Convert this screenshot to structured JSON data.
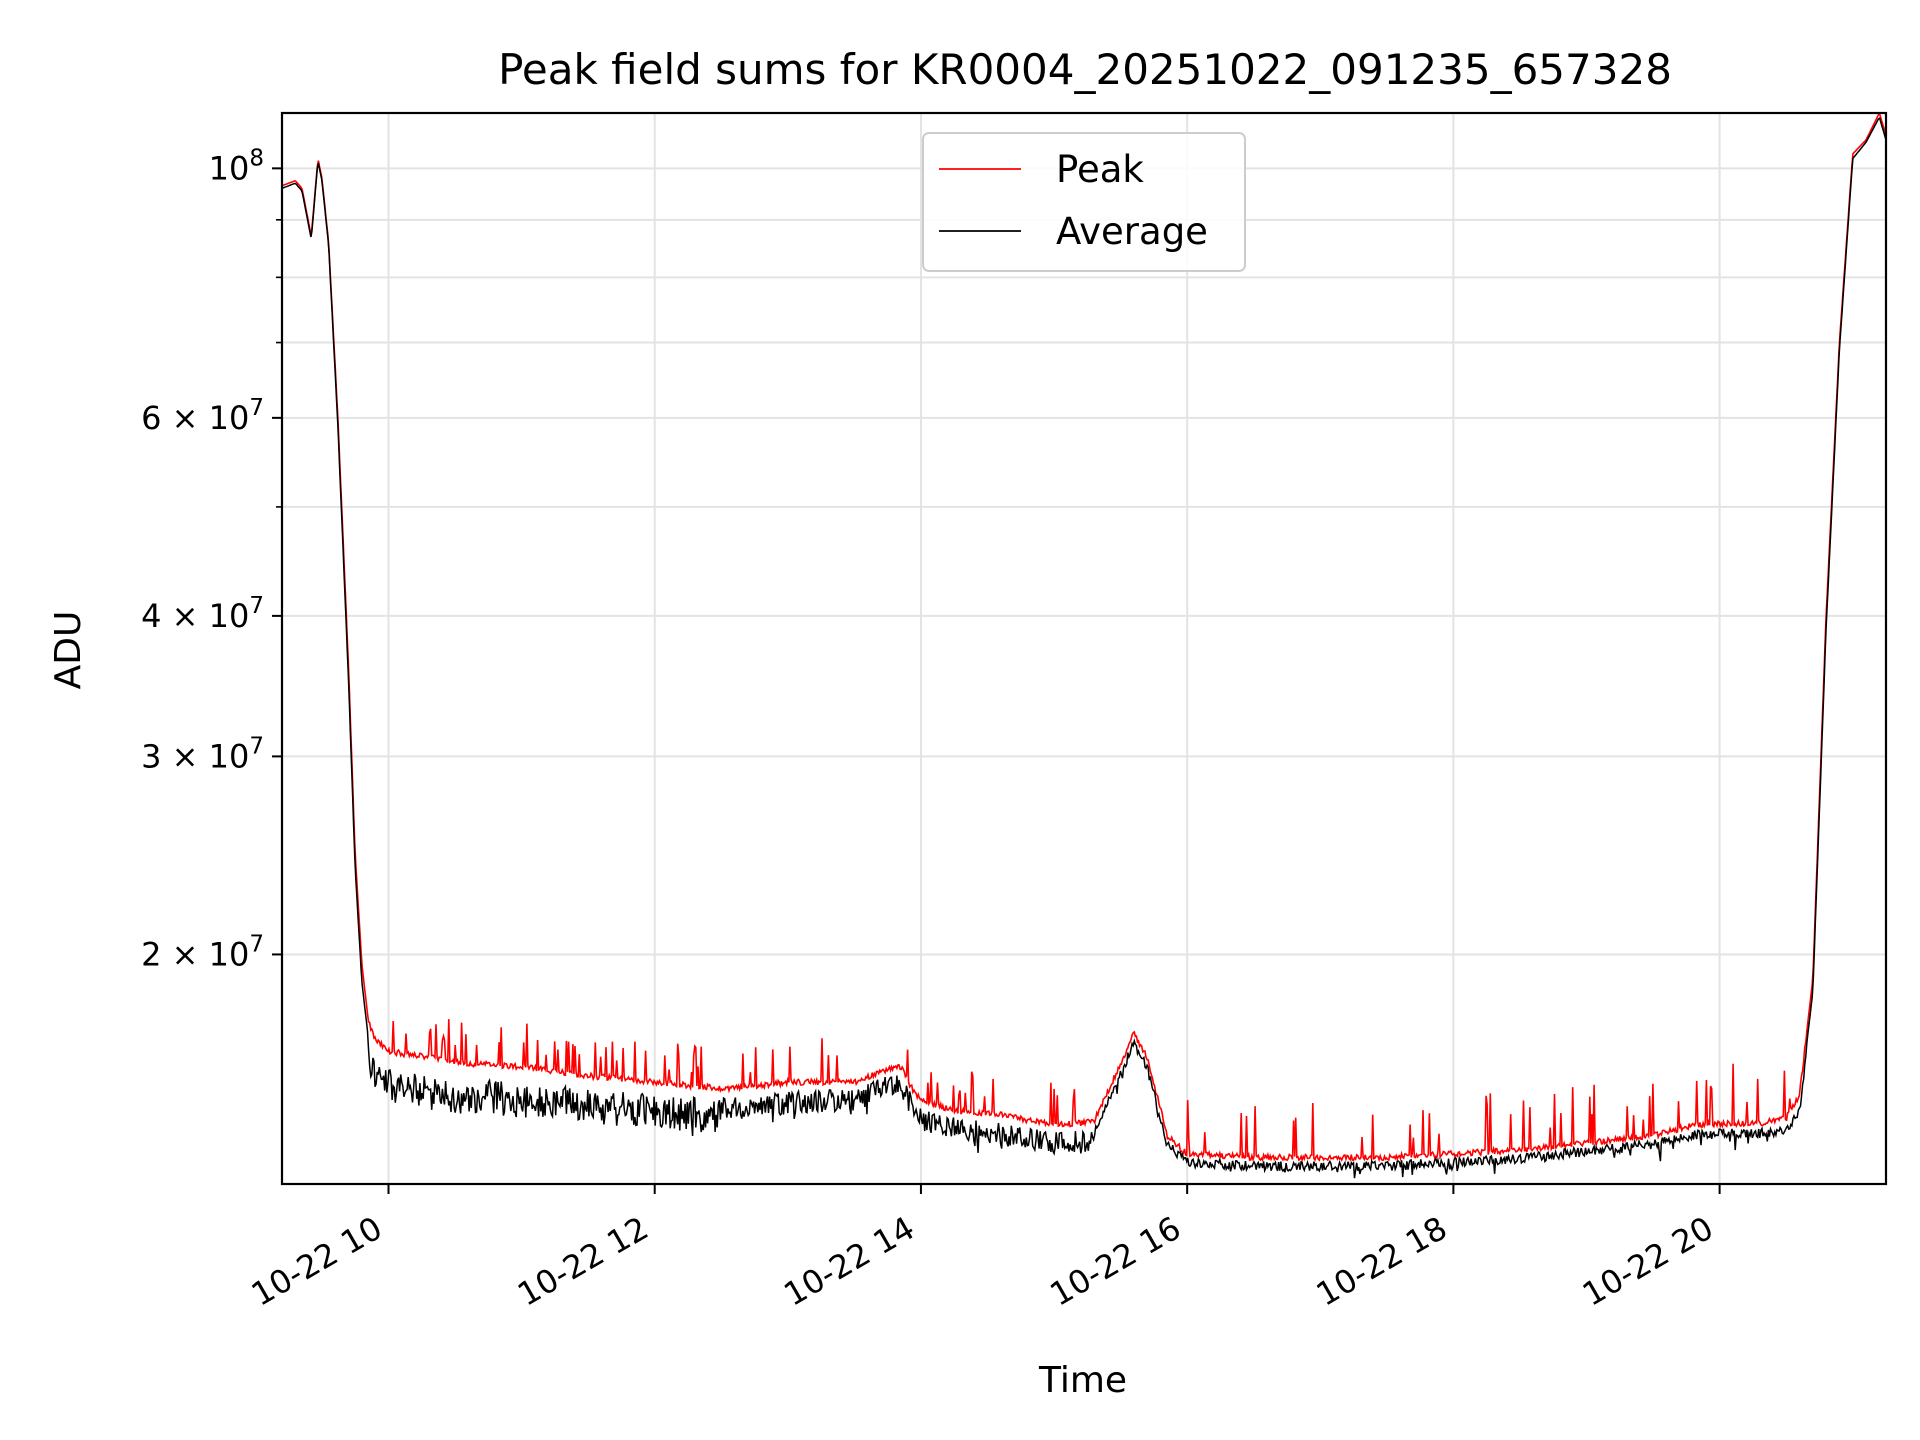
{
  "chart_data": {
    "type": "line",
    "title": "Peak field sums for KR0004_20251022_091235_657328",
    "xlabel": "Time",
    "ylabel": "ADU",
    "yscale": "log",
    "xlim_hours": [
      9.2,
      21.25
    ],
    "ylim": [
      12500000,
      112000000
    ],
    "grid": true,
    "legend_location": "upper center",
    "x_ticks": [
      {
        "value": 10,
        "label": "10-22 10"
      },
      {
        "value": 12,
        "label": "10-22 12"
      },
      {
        "value": 14,
        "label": "10-22 14"
      },
      {
        "value": 16,
        "label": "10-22 16"
      },
      {
        "value": 18,
        "label": "10-22 18"
      },
      {
        "value": 20,
        "label": "10-22 20"
      }
    ],
    "y_major_ticks": [
      {
        "value": 20000000,
        "mantissa": "2",
        "exp": "7"
      },
      {
        "value": 30000000,
        "mantissa": "3",
        "exp": "7"
      },
      {
        "value": 40000000,
        "mantissa": "4",
        "exp": "7"
      },
      {
        "value": 60000000,
        "mantissa": "6",
        "exp": "7"
      },
      {
        "value": 100000000,
        "mantissa": "",
        "exp": "8"
      }
    ],
    "y_minor_ticks": [
      50000000,
      70000000,
      80000000,
      90000000
    ],
    "series": [
      {
        "name": "Peak",
        "color": "#ff0000",
        "x": [
          9.2,
          9.3,
          9.35,
          9.42,
          9.47,
          9.5,
          9.55,
          9.62,
          9.7,
          9.75,
          9.8,
          9.85,
          9.9,
          10.0,
          10.3,
          10.6,
          11.0,
          11.5,
          12.0,
          12.5,
          12.8,
          13.0,
          13.5,
          13.75,
          13.85,
          13.92,
          14.0,
          14.3,
          14.6,
          15.0,
          15.3,
          15.5,
          15.6,
          15.7,
          15.85,
          16.0,
          16.5,
          17.0,
          17.5,
          18.0,
          18.5,
          19.0,
          19.5,
          19.8,
          20.0,
          20.3,
          20.5,
          20.6,
          20.7,
          20.8,
          20.9,
          21.0,
          21.1,
          21.2,
          21.25
        ],
        "values": [
          96500000,
          97500000,
          96000000,
          87000000,
          102000000,
          98000000,
          86000000,
          60000000,
          36000000,
          24500000,
          19600000,
          17400000,
          16800000,
          16400000,
          16200000,
          16000000,
          15900000,
          15600000,
          15400000,
          15200000,
          15300000,
          15400000,
          15400000,
          15800000,
          15900000,
          15300000,
          14800000,
          14500000,
          14400000,
          14100000,
          14200000,
          16000000,
          17000000,
          16200000,
          13800000,
          13300000,
          13200000,
          13200000,
          13200000,
          13300000,
          13400000,
          13600000,
          13800000,
          14100000,
          14150000,
          14150000,
          14300000,
          15000000,
          19000000,
          40000000,
          70000000,
          103000000,
          106000000,
          112000000,
          107000000
        ]
      },
      {
        "name": "Average",
        "color": "#000000",
        "x": [
          9.2,
          9.3,
          9.35,
          9.42,
          9.47,
          9.5,
          9.55,
          9.62,
          9.7,
          9.75,
          9.8,
          9.85,
          9.9,
          10.0,
          10.3,
          10.6,
          11.0,
          11.5,
          12.0,
          12.5,
          12.8,
          13.0,
          13.5,
          13.75,
          13.85,
          13.92,
          14.0,
          14.3,
          14.6,
          15.0,
          15.3,
          15.5,
          15.6,
          15.7,
          15.85,
          16.0,
          16.5,
          17.0,
          17.5,
          18.0,
          18.5,
          19.0,
          19.5,
          19.8,
          20.0,
          20.3,
          20.5,
          20.6,
          20.7,
          20.8,
          20.9,
          21.0,
          21.1,
          21.2,
          21.25
        ],
        "values": [
          96000000,
          97000000,
          95500000,
          86500000,
          101500000,
          97500000,
          85500000,
          59000000,
          35000000,
          23800000,
          18900000,
          16800000,
          16200000,
          15800000,
          15600000,
          15500000,
          15400000,
          15200000,
          15000000,
          14900000,
          15000000,
          15100000,
          15200000,
          15600000,
          15700000,
          15100000,
          14600000,
          14300000,
          14200000,
          13900000,
          14000000,
          15800000,
          16900000,
          16000000,
          13700000,
          13200000,
          13100000,
          13100000,
          13100000,
          13200000,
          13300000,
          13500000,
          13700000,
          13950000,
          14000000,
          14000000,
          14100000,
          14700000,
          18500000,
          39000000,
          69000000,
          102000000,
          105500000,
          111000000,
          106000000
        ]
      }
    ]
  }
}
